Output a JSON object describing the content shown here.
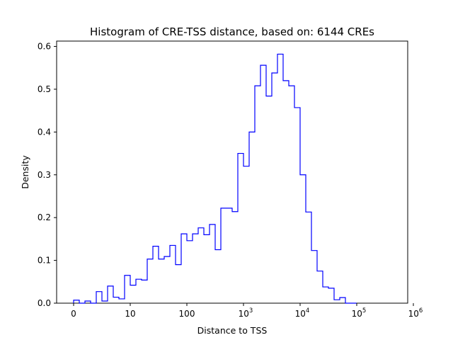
{
  "chart_data": {
    "type": "histogram",
    "title": "Histogram of CRE-TSS distance, based on: 6144 CREs",
    "xlabel": "Distance to TSS",
    "ylabel": "Density",
    "x_scale": "log-like (0, 10, 100, 10^3, 10^4, 10^5, 10^6)",
    "x_ticks": [
      {
        "base": "0",
        "exp": ""
      },
      {
        "base": "10",
        "exp": ""
      },
      {
        "base": "100",
        "exp": ""
      },
      {
        "base": "10",
        "exp": "3"
      },
      {
        "base": "10",
        "exp": "4"
      },
      {
        "base": "10",
        "exp": "5"
      },
      {
        "base": "10",
        "exp": "6"
      }
    ],
    "y_ticks": [
      "0.0",
      "0.1",
      "0.2",
      "0.3",
      "0.4",
      "0.5",
      "0.6"
    ],
    "ylim": [
      0,
      0.6125
    ],
    "xlim": [
      -0.3,
      5.9
    ],
    "grid": false,
    "bin_start": 0,
    "bin_width": 0.1,
    "line_color": "#0000ff",
    "density": [
      0.007,
      0.0,
      0.005,
      0.0,
      0.027,
      0.005,
      0.04,
      0.014,
      0.01,
      0.065,
      0.042,
      0.056,
      0.054,
      0.103,
      0.133,
      0.103,
      0.109,
      0.135,
      0.09,
      0.162,
      0.146,
      0.162,
      0.176,
      0.16,
      0.184,
      0.125,
      0.222,
      0.222,
      0.214,
      0.35,
      0.32,
      0.4,
      0.508,
      0.556,
      0.484,
      0.538,
      0.582,
      0.52,
      0.508,
      0.457,
      0.3,
      0.213,
      0.123,
      0.075,
      0.038,
      0.035,
      0.008,
      0.013,
      0.0,
      0.0
    ]
  }
}
